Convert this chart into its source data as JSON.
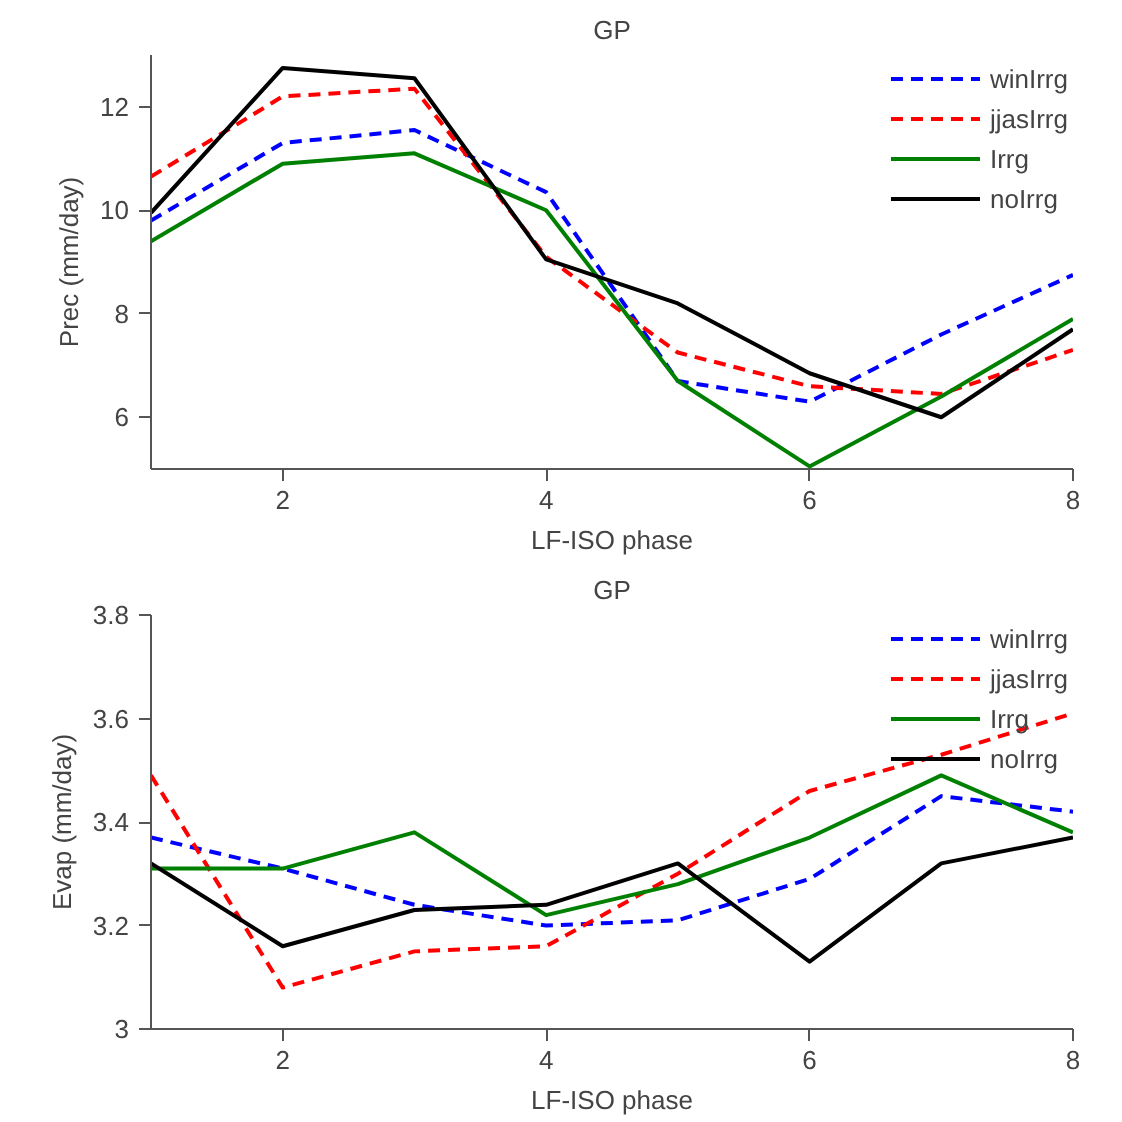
{
  "chart_data": [
    {
      "type": "line",
      "title": "GP",
      "xlabel": "LF-ISO phase",
      "ylabel": "Prec (mm/day)",
      "x": [
        1,
        2,
        3,
        4,
        5,
        6,
        7,
        8
      ],
      "xlim": [
        1,
        8
      ],
      "xticks": [
        2,
        4,
        6,
        8
      ],
      "ylim": [
        5,
        13
      ],
      "yticks": [
        6,
        8,
        10,
        12
      ],
      "grid": false,
      "legend": "top right",
      "series": [
        {
          "name": "winIrrg",
          "color": "#0000ff",
          "line_style": "dashed",
          "values": [
            9.8,
            11.3,
            11.55,
            10.35,
            6.7,
            6.3,
            7.6,
            8.75
          ]
        },
        {
          "name": "jjasIrrg",
          "color": "#ff0000",
          "line_style": "dashed",
          "values": [
            10.65,
            12.2,
            12.35,
            9.1,
            7.25,
            6.6,
            6.45,
            7.3
          ]
        },
        {
          "name": "Irrg",
          "color": "#008000",
          "line_style": "solid",
          "values": [
            9.4,
            10.9,
            11.1,
            10.0,
            6.7,
            5.05,
            6.4,
            7.9
          ]
        },
        {
          "name": "noIrrg",
          "color": "#000000",
          "line_style": "solid",
          "values": [
            9.95,
            12.75,
            12.55,
            9.05,
            8.2,
            6.85,
            6.0,
            7.7
          ]
        }
      ]
    },
    {
      "type": "line",
      "title": "GP",
      "xlabel": "LF-ISO phase",
      "ylabel": "Evap (mm/day)",
      "x": [
        1,
        2,
        3,
        4,
        5,
        6,
        7,
        8
      ],
      "xlim": [
        1,
        8
      ],
      "xticks": [
        2,
        4,
        6,
        8
      ],
      "ylim": [
        3,
        3.8
      ],
      "yticks": [
        3,
        3.2,
        3.4,
        3.6,
        3.8
      ],
      "grid": false,
      "legend": "top right",
      "series": [
        {
          "name": "winIrrg",
          "color": "#0000ff",
          "line_style": "dashed",
          "values": [
            3.37,
            3.31,
            3.24,
            3.2,
            3.21,
            3.29,
            3.45,
            3.42
          ]
        },
        {
          "name": "jjasIrrg",
          "color": "#ff0000",
          "line_style": "dashed",
          "values": [
            3.49,
            3.08,
            3.15,
            3.16,
            3.3,
            3.46,
            3.53,
            3.61
          ]
        },
        {
          "name": "Irrg",
          "color": "#008000",
          "line_style": "solid",
          "values": [
            3.31,
            3.31,
            3.38,
            3.22,
            3.28,
            3.37,
            3.49,
            3.38
          ]
        },
        {
          "name": "noIrrg",
          "color": "#000000",
          "line_style": "solid",
          "values": [
            3.32,
            3.16,
            3.23,
            3.24,
            3.32,
            3.13,
            3.32,
            3.37
          ]
        }
      ]
    }
  ]
}
